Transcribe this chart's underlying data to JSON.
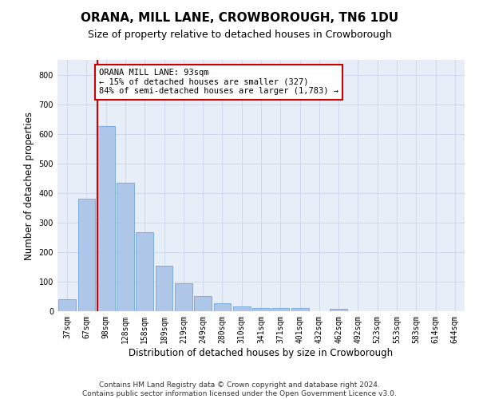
{
  "title": "ORANA, MILL LANE, CROWBOROUGH, TN6 1DU",
  "subtitle": "Size of property relative to detached houses in Crowborough",
  "xlabel": "Distribution of detached houses by size in Crowborough",
  "ylabel": "Number of detached properties",
  "categories": [
    "37sqm",
    "67sqm",
    "98sqm",
    "128sqm",
    "158sqm",
    "189sqm",
    "219sqm",
    "249sqm",
    "280sqm",
    "310sqm",
    "341sqm",
    "371sqm",
    "401sqm",
    "432sqm",
    "462sqm",
    "492sqm",
    "523sqm",
    "553sqm",
    "583sqm",
    "614sqm",
    "644sqm"
  ],
  "values": [
    40,
    380,
    625,
    435,
    268,
    155,
    95,
    52,
    28,
    15,
    10,
    10,
    10,
    0,
    8,
    0,
    0,
    0,
    0,
    0,
    0
  ],
  "bar_color": "#aec6e8",
  "bar_edge_color": "#5b9bd5",
  "highlight_index": 2,
  "highlight_line_color": "#cc0000",
  "annotation_text": "ORANA MILL LANE: 93sqm\n← 15% of detached houses are smaller (327)\n84% of semi-detached houses are larger (1,783) →",
  "annotation_box_color": "#ffffff",
  "annotation_box_edge": "#cc0000",
  "ylim": [
    0,
    850
  ],
  "yticks": [
    0,
    100,
    200,
    300,
    400,
    500,
    600,
    700,
    800
  ],
  "grid_color": "#c8d4e8",
  "bg_color": "#e8eef8",
  "footer": "Contains HM Land Registry data © Crown copyright and database right 2024.\nContains public sector information licensed under the Open Government Licence v3.0.",
  "title_fontsize": 11,
  "subtitle_fontsize": 9,
  "axis_label_fontsize": 8.5,
  "tick_fontsize": 7,
  "annotation_fontsize": 7.5,
  "footer_fontsize": 6.5
}
